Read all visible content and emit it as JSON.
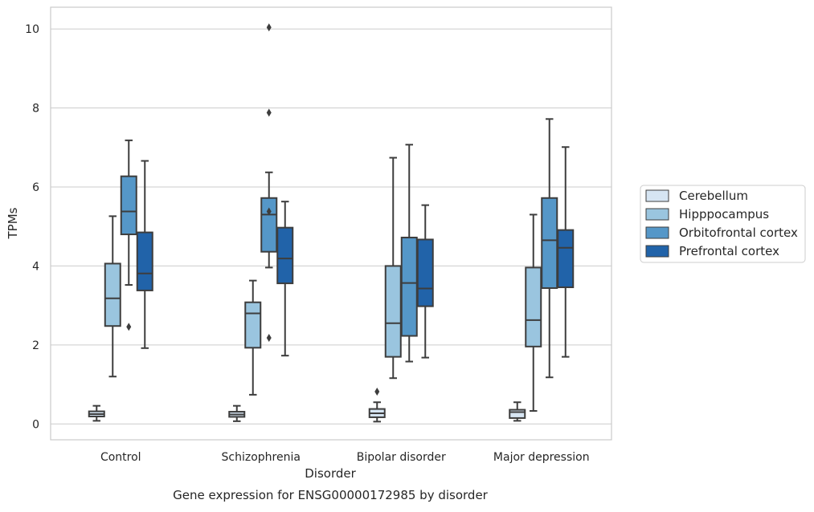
{
  "chart_data": {
    "type": "boxplot",
    "caption": "Gene expression for ENSG00000172985 by disorder",
    "xlabel": "Disorder",
    "ylabel": "TPMs",
    "ylim": [
      -0.4,
      10.55
    ],
    "yticks": [
      0,
      2,
      4,
      6,
      8,
      10
    ],
    "grid": "horizontal",
    "legend_position": "right",
    "categories": [
      "Control",
      "Schizophrenia",
      "Bipolar disorder",
      "Major depression"
    ],
    "series": [
      {
        "name": "Cerebellum",
        "color": "#d6e5f3",
        "boxes": [
          {
            "whislo": 0.08,
            "q1": 0.19,
            "med": 0.25,
            "q3": 0.32,
            "whishi": 0.46,
            "fliers": []
          },
          {
            "whislo": 0.07,
            "q1": 0.18,
            "med": 0.24,
            "q3": 0.31,
            "whishi": 0.46,
            "fliers": []
          },
          {
            "whislo": 0.06,
            "q1": 0.17,
            "med": 0.27,
            "q3": 0.38,
            "whishi": 0.55,
            "fliers": [
              0.82
            ]
          },
          {
            "whislo": 0.08,
            "q1": 0.15,
            "med": 0.3,
            "q3": 0.36,
            "whishi": 0.55,
            "fliers": []
          }
        ]
      },
      {
        "name": "Hipppocampus",
        "color": "#9ac5df",
        "boxes": [
          {
            "whislo": 1.2,
            "q1": 2.48,
            "med": 3.18,
            "q3": 4.06,
            "whishi": 5.26,
            "fliers": []
          },
          {
            "whislo": 0.74,
            "q1": 1.93,
            "med": 2.8,
            "q3": 3.08,
            "whishi": 3.63,
            "fliers": []
          },
          {
            "whislo": 1.16,
            "q1": 1.7,
            "med": 2.55,
            "q3": 4.0,
            "whishi": 6.74,
            "fliers": []
          },
          {
            "whislo": 0.33,
            "q1": 1.96,
            "med": 2.63,
            "q3": 3.96,
            "whishi": 5.3,
            "fliers": []
          }
        ]
      },
      {
        "name": "Orbitofrontal cortex",
        "color": "#5597c8",
        "boxes": [
          {
            "whislo": 3.52,
            "q1": 4.8,
            "med": 5.38,
            "q3": 6.27,
            "whishi": 7.18,
            "fliers": [
              2.46
            ]
          },
          {
            "whislo": 3.96,
            "q1": 4.36,
            "med": 5.3,
            "q3": 5.72,
            "whishi": 6.37,
            "fliers": [
              5.38,
              2.18,
              7.88,
              10.04
            ]
          },
          {
            "whislo": 1.58,
            "q1": 2.23,
            "med": 3.57,
            "q3": 4.72,
            "whishi": 7.07,
            "fliers": []
          },
          {
            "whislo": 1.18,
            "q1": 3.44,
            "med": 4.65,
            "q3": 5.72,
            "whishi": 7.72,
            "fliers": []
          }
        ]
      },
      {
        "name": "Prefrontal cortex",
        "color": "#2163a9",
        "boxes": [
          {
            "whislo": 1.92,
            "q1": 3.38,
            "med": 3.81,
            "q3": 4.85,
            "whishi": 6.66,
            "fliers": []
          },
          {
            "whislo": 1.73,
            "q1": 3.56,
            "med": 4.19,
            "q3": 4.97,
            "whishi": 5.63,
            "fliers": []
          },
          {
            "whislo": 1.68,
            "q1": 2.98,
            "med": 3.43,
            "q3": 4.67,
            "whishi": 5.54,
            "fliers": []
          },
          {
            "whislo": 1.7,
            "q1": 3.46,
            "med": 4.46,
            "q3": 4.91,
            "whishi": 7.01,
            "fliers": []
          }
        ]
      }
    ]
  }
}
